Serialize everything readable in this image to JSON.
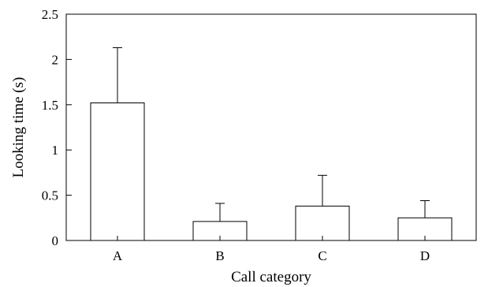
{
  "chart_data": {
    "type": "bar",
    "title": "",
    "xlabel": "Call category",
    "ylabel": "Looking time (s)",
    "categories": [
      "A",
      "B",
      "C",
      "D"
    ],
    "values": [
      1.52,
      0.21,
      0.38,
      0.25
    ],
    "error_upper": [
      2.13,
      0.41,
      0.72,
      0.44
    ],
    "ylim": [
      0,
      2.5
    ],
    "yticks": [
      {
        "value": 0,
        "label": "0"
      },
      {
        "value": 0.5,
        "label": "0.5"
      },
      {
        "value": 1,
        "label": "1"
      },
      {
        "value": 1.5,
        "label": "1.5"
      },
      {
        "value": 2,
        "label": "2"
      },
      {
        "value": 2.5,
        "label": "2.5"
      }
    ],
    "grid": false,
    "bar_color": "#ffffff",
    "edge_color": "#000000"
  }
}
